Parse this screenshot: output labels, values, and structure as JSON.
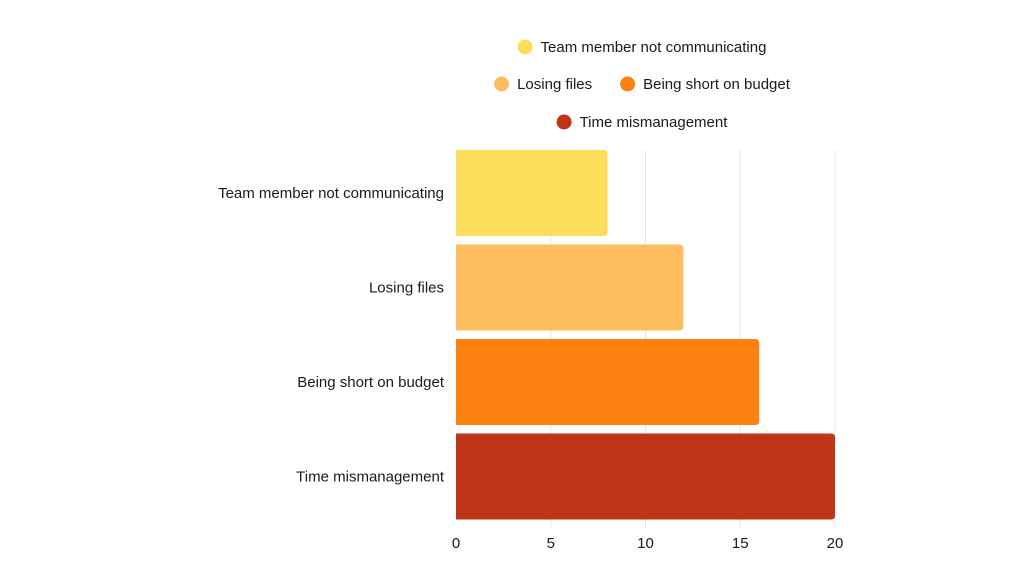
{
  "chart_data": {
    "type": "bar",
    "orientation": "horizontal",
    "title": "",
    "xlabel": "",
    "ylabel": "",
    "categories": [
      "Team member not communicating",
      "Losing files",
      "Being short on budget",
      "Time mismanagement"
    ],
    "values": [
      8,
      12,
      16,
      20
    ],
    "colors": [
      "#FDDD5C",
      "#FDBD5E",
      "#FD8111",
      "#C0341A"
    ],
    "xlim": [
      0,
      20
    ],
    "x_ticks": [
      0,
      5,
      10,
      15,
      20
    ],
    "grid": "vertical",
    "legend": {
      "placement": "top",
      "rows": [
        [
          0
        ],
        [
          1,
          2
        ],
        [
          3
        ]
      ],
      "entries": [
        {
          "label": "Team member not communicating",
          "color": "#FDDD5C"
        },
        {
          "label": "Losing files",
          "color": "#FDBD5E"
        },
        {
          "label": "Being short on budget",
          "color": "#FD8111"
        },
        {
          "label": "Time mismanagement",
          "color": "#C0341A"
        }
      ]
    }
  }
}
